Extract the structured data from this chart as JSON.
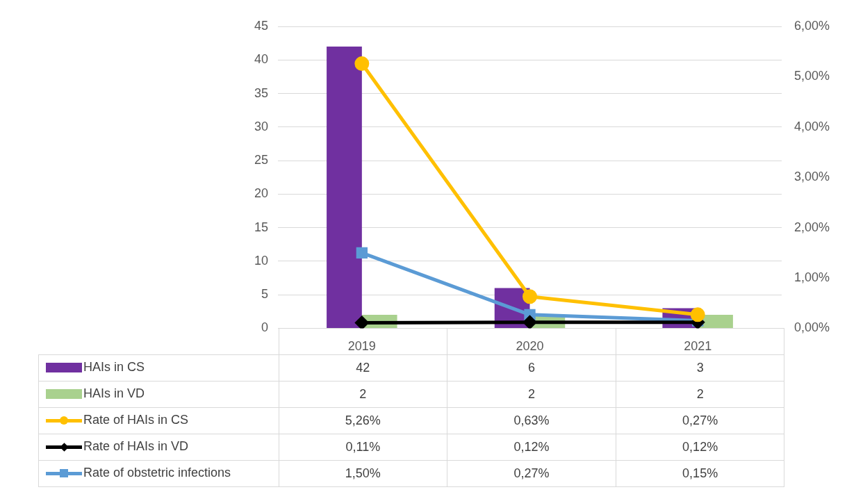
{
  "chart_data": {
    "type": "bar",
    "categories": [
      "2019",
      "2020",
      "2021"
    ],
    "series": [
      {
        "name": "HAIs in CS",
        "color": "#7030a0",
        "values": [
          42,
          6,
          3
        ],
        "value_labels": [
          "42",
          "6",
          "3"
        ]
      },
      {
        "name": "HAIs in VD",
        "color": "#a9d18e",
        "values": [
          2,
          2,
          2
        ],
        "value_labels": [
          "2",
          "2",
          "2"
        ]
      },
      {
        "name": "Rate of HAIs in CS",
        "type": "line",
        "axis": "y2",
        "marker": "circle",
        "color": "#ffc000",
        "values": [
          5.26,
          0.63,
          0.27
        ],
        "value_labels": [
          "5,26%",
          "0,63%",
          "0,27%"
        ]
      },
      {
        "name": "Rate of HAIs in VD",
        "type": "line",
        "axis": "y2",
        "marker": "diamond",
        "color": "#000000",
        "values": [
          0.11,
          0.12,
          0.12
        ],
        "value_labels": [
          "0,11%",
          "0,12%",
          "0,12%"
        ]
      },
      {
        "name": "Rate of obstetric infections",
        "type": "line",
        "axis": "y2",
        "marker": "square",
        "color": "#5b9bd5",
        "values": [
          1.5,
          0.27,
          0.15
        ],
        "value_labels": [
          "1,50%",
          "0,27%",
          "0,15%"
        ]
      }
    ],
    "ylim": [
      0,
      45
    ],
    "yticks": [
      0,
      5,
      10,
      15,
      20,
      25,
      30,
      35,
      40,
      45
    ],
    "y2lim": [
      0,
      6
    ],
    "y2ticks": [
      {
        "value": 0,
        "label": "0,00%"
      },
      {
        "value": 1,
        "label": "1,00%"
      },
      {
        "value": 2,
        "label": "2,00%"
      },
      {
        "value": 3,
        "label": "3,00%"
      },
      {
        "value": 4,
        "label": "4,00%"
      },
      {
        "value": 5,
        "label": "5,00%"
      },
      {
        "value": 6,
        "label": "6,00%"
      }
    ],
    "grid": "y",
    "legend": "bottom"
  }
}
